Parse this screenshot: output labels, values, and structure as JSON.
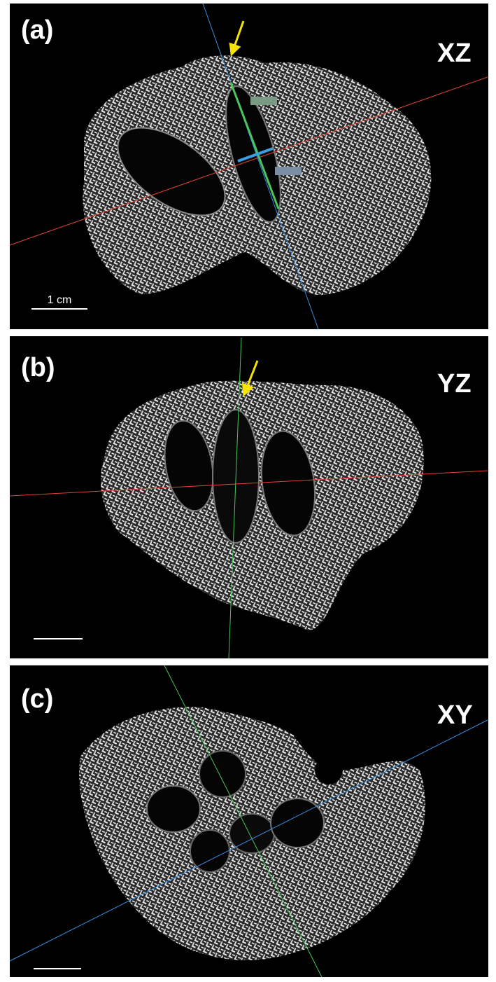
{
  "panels": [
    {
      "label": "(a)",
      "plane": "XZ",
      "scale_label": "1 cm"
    },
    {
      "label": "(b)",
      "plane": "YZ"
    },
    {
      "label": "(c)",
      "plane": "XY"
    }
  ]
}
